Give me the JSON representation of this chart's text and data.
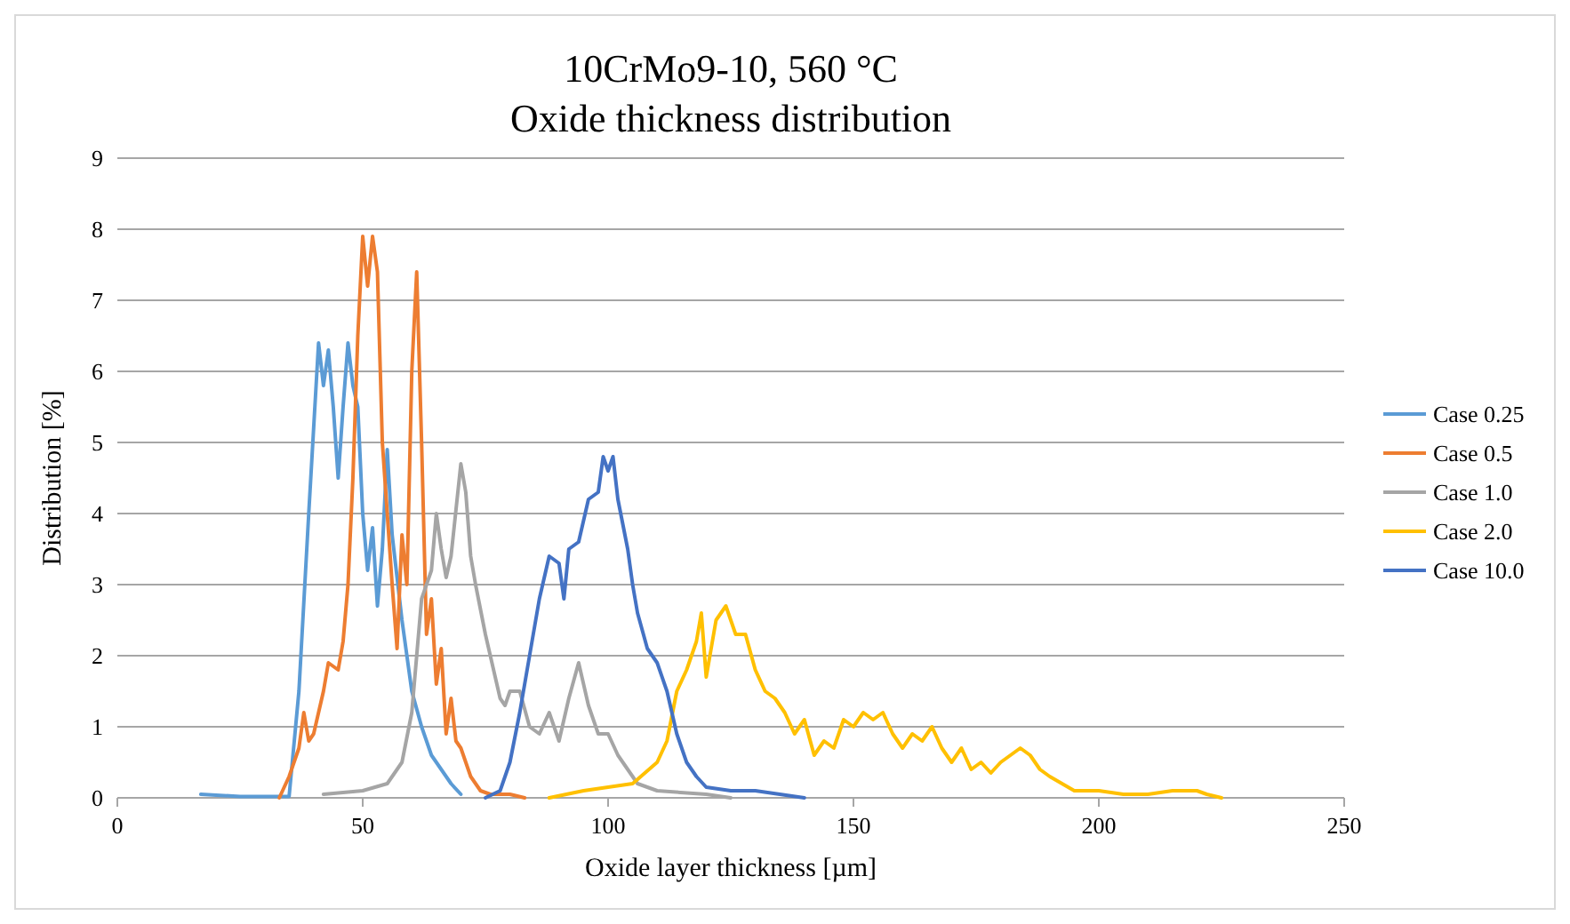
{
  "chart_data": {
    "type": "line",
    "title": "10CrMo9-10, 560 °C",
    "subtitle": "Oxide thickness distribution",
    "xlabel": "Oxide layer thickness [µm]",
    "ylabel": "Distribution [%]",
    "xlim": [
      0,
      250
    ],
    "xticks": [
      0,
      50,
      100,
      150,
      200,
      250
    ],
    "ylim": [
      0,
      9
    ],
    "yticks": [
      0,
      1,
      2,
      3,
      4,
      5,
      6,
      7,
      8,
      9
    ],
    "grid": "y",
    "legend": "right",
    "series": [
      {
        "name": "Case 0.25",
        "color": "#5b9bd5",
        "x": [
          17,
          25,
          35,
          37,
          39,
          40,
          41,
          42,
          43,
          44,
          45,
          46,
          47,
          48,
          49,
          50,
          51,
          52,
          53,
          54,
          55,
          56,
          58,
          60,
          62,
          64,
          66,
          68,
          70
        ],
        "values": [
          0.05,
          0.02,
          0.02,
          1.5,
          4,
          5.2,
          6.4,
          5.8,
          6.3,
          5.5,
          4.5,
          5.5,
          6.4,
          5.8,
          5.5,
          4,
          3.2,
          3.8,
          2.7,
          3.5,
          4.9,
          3.7,
          2.5,
          1.5,
          1,
          0.6,
          0.4,
          0.2,
          0.05
        ]
      },
      {
        "name": "Case 0.5",
        "color": "#ed7d31",
        "x": [
          33,
          35,
          37,
          38,
          39,
          40,
          42,
          43,
          45,
          46,
          47,
          48,
          49,
          50,
          51,
          52,
          53,
          54,
          55,
          56,
          57,
          58,
          59,
          60,
          61,
          62,
          63,
          64,
          65,
          66,
          67,
          68,
          69,
          70,
          72,
          74,
          76,
          80,
          83
        ],
        "values": [
          0,
          0.3,
          0.7,
          1.2,
          0.8,
          0.9,
          1.5,
          1.9,
          1.8,
          2.2,
          3,
          4.5,
          6.5,
          7.9,
          7.2,
          7.9,
          7.4,
          5,
          4,
          3,
          2.1,
          3.7,
          3,
          6,
          7.4,
          5,
          2.3,
          2.8,
          1.6,
          2.1,
          0.9,
          1.4,
          0.8,
          0.7,
          0.3,
          0.1,
          0.05,
          0.05,
          0
        ]
      },
      {
        "name": "Case 1.0",
        "color": "#a5a5a5",
        "x": [
          42,
          50,
          55,
          58,
          60,
          61,
          62,
          64,
          65,
          66,
          67,
          68,
          70,
          71,
          72,
          73,
          75,
          77,
          78,
          79,
          80,
          82,
          84,
          86,
          88,
          90,
          92,
          94,
          96,
          98,
          100,
          102,
          104,
          106,
          110,
          120,
          125
        ],
        "values": [
          0.05,
          0.1,
          0.2,
          0.5,
          1.2,
          2,
          2.8,
          3.2,
          4,
          3.5,
          3.1,
          3.4,
          4.7,
          4.3,
          3.4,
          3,
          2.3,
          1.7,
          1.4,
          1.3,
          1.5,
          1.5,
          1,
          0.9,
          1.2,
          0.8,
          1.4,
          1.9,
          1.3,
          0.9,
          0.9,
          0.6,
          0.4,
          0.2,
          0.1,
          0.05,
          0
        ]
      },
      {
        "name": "Case 2.0",
        "color": "#ffc000",
        "x": [
          88,
          95,
          100,
          105,
          110,
          112,
          114,
          116,
          118,
          119,
          120,
          122,
          124,
          126,
          128,
          130,
          132,
          134,
          136,
          138,
          140,
          142,
          144,
          146,
          148,
          150,
          152,
          154,
          156,
          158,
          160,
          162,
          164,
          166,
          168,
          170,
          172,
          174,
          176,
          178,
          180,
          182,
          184,
          186,
          188,
          190,
          195,
          200,
          205,
          210,
          215,
          220,
          222,
          225
        ],
        "values": [
          0,
          0.1,
          0.15,
          0.2,
          0.5,
          0.8,
          1.5,
          1.8,
          2.2,
          2.6,
          1.7,
          2.5,
          2.7,
          2.3,
          2.3,
          1.8,
          1.5,
          1.4,
          1.2,
          0.9,
          1.1,
          0.6,
          0.8,
          0.7,
          1.1,
          1,
          1.2,
          1.1,
          1.2,
          0.9,
          0.7,
          0.9,
          0.8,
          1,
          0.7,
          0.5,
          0.7,
          0.4,
          0.5,
          0.35,
          0.5,
          0.6,
          0.7,
          0.6,
          0.4,
          0.3,
          0.1,
          0.1,
          0.05,
          0.05,
          0.1,
          0.1,
          0.05,
          0
        ]
      },
      {
        "name": "Case 10.0",
        "color": "#4472c4",
        "x": [
          75,
          78,
          80,
          82,
          84,
          86,
          88,
          90,
          91,
          92,
          94,
          96,
          98,
          99,
          100,
          101,
          102,
          104,
          105,
          106,
          108,
          110,
          112,
          114,
          116,
          118,
          120,
          125,
          130,
          135,
          140
        ],
        "values": [
          0,
          0.1,
          0.5,
          1.2,
          2,
          2.8,
          3.4,
          3.3,
          2.8,
          3.5,
          3.6,
          4.2,
          4.3,
          4.8,
          4.6,
          4.8,
          4.2,
          3.5,
          3,
          2.6,
          2.1,
          1.9,
          1.5,
          0.9,
          0.5,
          0.3,
          0.15,
          0.1,
          0.1,
          0.05,
          0
        ]
      }
    ]
  }
}
